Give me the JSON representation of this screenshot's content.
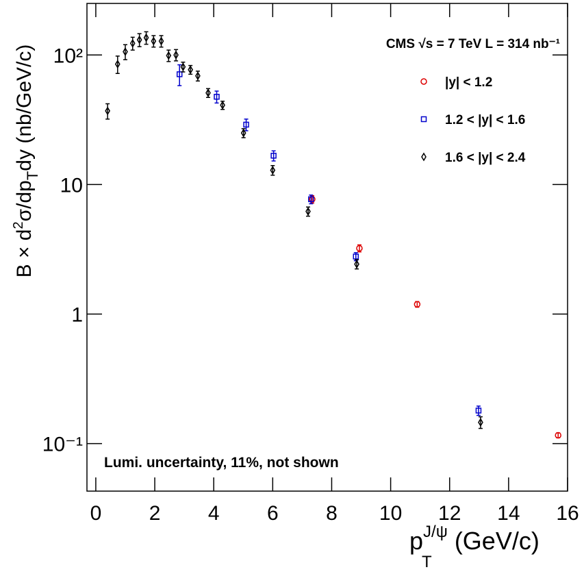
{
  "chart_data": {
    "type": "scatter",
    "y_label": [
      "B × d",
      "2",
      "σ/dp",
      "T",
      "dy (nb/GeV/c)"
    ],
    "x_label": [
      "p",
      "J/ψ",
      "T",
      " (GeV/c)"
    ],
    "annotations": [
      "CMS √s = 7 TeV  L = 314 nb⁻¹",
      "Lumi. uncertainty, 11%, not shown"
    ],
    "log_y": true,
    "xlim": [
      -0.3,
      16.0
    ],
    "ylim": [
      0.043,
      250
    ],
    "xticks": [
      0,
      2,
      4,
      6,
      8,
      10,
      12,
      14,
      16
    ],
    "yticks": [
      {
        "value": 0.1,
        "label": "10⁻¹"
      },
      1,
      10,
      {
        "value": 100,
        "label": "10²"
      }
    ],
    "series": [
      {
        "name": "|y| < 1.2",
        "color": "#dd0000",
        "marker": "circle",
        "x": [
          7.34,
          8.94,
          10.9,
          15.68
        ],
        "values": [
          7.7,
          3.22,
          1.19,
          0.116
        ],
        "errors": [
          0.5,
          0.2,
          0.06,
          0.005
        ]
      },
      {
        "name": "1.2 < |y| < 1.6",
        "color": "#0000cc",
        "marker": "square",
        "x": [
          2.84,
          4.1,
          5.1,
          6.03,
          7.3,
          8.82,
          12.98
        ],
        "values": [
          71,
          47.6,
          29,
          16.7,
          7.7,
          2.78,
          0.18
        ],
        "errors": [
          13,
          5,
          3,
          1.5,
          0.6,
          0.2,
          0.015
        ]
      },
      {
        "name": "1.6 < |y| < 2.4",
        "color": "#000000",
        "marker": "diamond",
        "x": [
          0.4,
          0.74,
          1.0,
          1.25,
          1.48,
          1.71,
          1.96,
          2.22,
          2.47,
          2.72,
          2.96,
          3.21,
          3.46,
          3.81,
          4.3,
          5.01,
          6.0,
          7.2,
          8.85,
          13.05
        ],
        "values": [
          37,
          85,
          106,
          123,
          131,
          136,
          128,
          128,
          99,
          100,
          81,
          77,
          69,
          51,
          41,
          25,
          12.9,
          6.2,
          2.43,
          0.146
        ],
        "errors": [
          5,
          13,
          14,
          14,
          15,
          15,
          13,
          13,
          10,
          10,
          7,
          6,
          6,
          4,
          3,
          2,
          1.1,
          0.5,
          0.2,
          0.015
        ]
      }
    ]
  }
}
